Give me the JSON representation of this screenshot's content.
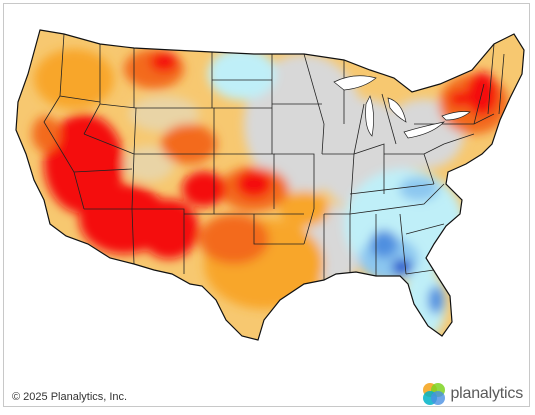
{
  "copyright": "© 2025 Planalytics, Inc.",
  "logo": {
    "wordmark": "planalytics",
    "mark_colors": [
      "#f5a623",
      "#7ed321",
      "#4a90e2",
      "#00b3c7"
    ]
  },
  "map": {
    "region": "Contiguous United States",
    "palette": {
      "extreme_warm": "#f40808",
      "very_warm": "#f36b1a",
      "warm": "#f8a62a",
      "slightly_warm": "#f7c870",
      "near_normal_warm": "#e9d4a6",
      "neutral": "#d8d8d8",
      "slightly_cool": "#bfeff8",
      "cool": "#8cc7f0",
      "very_cool": "#4f8fe0",
      "extreme_cool": "#2255cc"
    }
  }
}
